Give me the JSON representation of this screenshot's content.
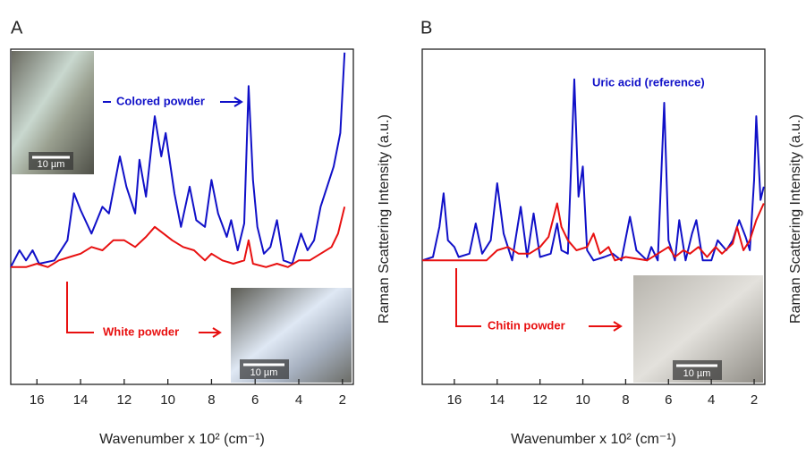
{
  "chart_data": [
    {
      "type": "line",
      "panel_label": "A",
      "x_label": "Wavenumber x 10² (cm⁻¹)",
      "y_label": "Raman Scattering Intensity  (a.u.)",
      "xlim": [
        17.2,
        1.5
      ],
      "ylim": [
        0,
        100
      ],
      "xticks": [
        16,
        14,
        12,
        10,
        8,
        6,
        4,
        2
      ],
      "scale_labels": [
        "10 µm",
        "10 µm"
      ],
      "series": [
        {
          "name": "Colored powder",
          "color": "#1010c8",
          "x": [
            17.2,
            16.8,
            16.5,
            16.2,
            15.9,
            15.2,
            14.6,
            14.3,
            14.0,
            13.5,
            13.0,
            12.7,
            12.2,
            11.9,
            11.5,
            11.3,
            11.0,
            10.6,
            10.3,
            10.1,
            9.7,
            9.4,
            9.0,
            8.7,
            8.3,
            8.0,
            7.7,
            7.3,
            7.1,
            6.8,
            6.5,
            6.3,
            6.1,
            5.9,
            5.6,
            5.3,
            5.0,
            4.7,
            4.3,
            3.9,
            3.6,
            3.3,
            3.0,
            2.7,
            2.4,
            2.1,
            1.9
          ],
          "values": [
            35,
            40,
            37,
            40,
            36,
            37,
            43,
            57,
            52,
            45,
            53,
            51,
            68,
            59,
            51,
            67,
            56,
            80,
            68,
            75,
            57,
            47,
            59,
            49,
            47,
            61,
            51,
            44,
            49,
            40,
            48,
            89,
            61,
            47,
            39,
            41,
            49,
            37,
            36,
            45,
            40,
            43,
            53,
            59,
            65,
            75,
            99
          ]
        },
        {
          "name": "White powder",
          "color": "#e81010",
          "x": [
            17.2,
            16.5,
            16.0,
            15.5,
            15.0,
            14.5,
            14.0,
            13.5,
            13.0,
            12.5,
            12.0,
            11.5,
            11.0,
            10.6,
            10.2,
            9.8,
            9.3,
            8.8,
            8.3,
            8.0,
            7.5,
            7.0,
            6.5,
            6.3,
            6.1,
            5.5,
            5.0,
            4.5,
            4.0,
            3.5,
            3.0,
            2.5,
            2.2,
            1.9
          ],
          "values": [
            35,
            35,
            36,
            35,
            37,
            38,
            39,
            41,
            40,
            43,
            43,
            41,
            44,
            47,
            45,
            43,
            41,
            40,
            37,
            39,
            37,
            36,
            37,
            43,
            36,
            35,
            36,
            35,
            37,
            37,
            39,
            41,
            45,
            53
          ]
        }
      ]
    },
    {
      "type": "line",
      "panel_label": "B",
      "x_label": "Wavenumber x 10² (cm⁻¹)",
      "y_label": "Raman Scattering Intensity  (a.u.)",
      "xlim": [
        17.5,
        1.5
      ],
      "ylim": [
        0,
        100
      ],
      "xticks": [
        16,
        14,
        12,
        10,
        8,
        6,
        4,
        2
      ],
      "scale_labels": [
        "10 µm"
      ],
      "series": [
        {
          "name": "Uric acid (reference)",
          "color": "#1010c8",
          "x": [
            17.5,
            17.0,
            16.7,
            16.5,
            16.3,
            16.0,
            15.8,
            15.3,
            15.0,
            14.7,
            14.3,
            14.0,
            13.7,
            13.3,
            12.9,
            12.6,
            12.3,
            12.0,
            11.5,
            11.2,
            11.0,
            10.7,
            10.4,
            10.2,
            10.0,
            9.8,
            9.5,
            9.0,
            8.6,
            8.2,
            7.8,
            7.5,
            7.0,
            6.8,
            6.5,
            6.2,
            6.0,
            5.7,
            5.5,
            5.2,
            4.9,
            4.7,
            4.4,
            4.0,
            3.7,
            3.3,
            3.0,
            2.7,
            2.4,
            2.2,
            2.0,
            1.9,
            1.7,
            1.55
          ],
          "values": [
            37,
            38,
            47,
            57,
            43,
            41,
            38,
            39,
            48,
            39,
            43,
            60,
            45,
            37,
            53,
            38,
            51,
            38,
            39,
            48,
            40,
            39,
            91,
            56,
            65,
            40,
            37,
            38,
            39,
            37,
            50,
            40,
            37,
            41,
            37,
            84,
            43,
            37,
            49,
            37,
            45,
            49,
            37,
            37,
            43,
            40,
            43,
            49,
            44,
            40,
            61,
            80,
            55,
            59
          ]
        },
        {
          "name": "Chitin powder",
          "color": "#e81010",
          "x": [
            17.5,
            16.0,
            14.5,
            14.0,
            13.5,
            13.0,
            12.5,
            12.0,
            11.6,
            11.2,
            11.0,
            10.7,
            10.3,
            9.8,
            9.5,
            9.2,
            8.8,
            8.5,
            8.0,
            7.0,
            6.5,
            6.0,
            5.7,
            5.3,
            5.0,
            4.6,
            4.2,
            3.8,
            3.5,
            3.0,
            2.8,
            2.5,
            2.2,
            1.9,
            1.55
          ],
          "values": [
            37,
            37,
            37,
            40,
            41,
            39,
            39,
            41,
            44,
            54,
            47,
            43,
            40,
            41,
            45,
            39,
            41,
            37,
            38,
            37,
            39,
            41,
            38,
            40,
            39,
            41,
            38,
            41,
            39,
            42,
            47,
            40,
            43,
            49,
            54
          ]
        }
      ]
    }
  ]
}
